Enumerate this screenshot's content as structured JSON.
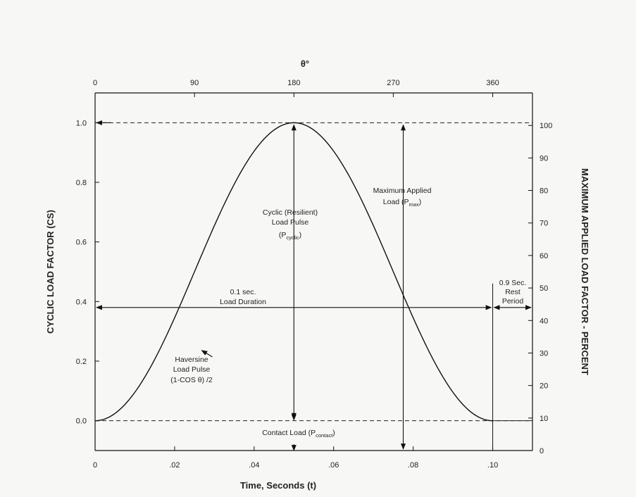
{
  "chart_data": {
    "type": "line",
    "title": "",
    "xlabel": "Time, Seconds (t)",
    "ylabel": "CYCLIC LOAD FACTOR (CS)",
    "y2label": "MAXIMUM APPLIED LOAD FACTOR - PERCENT",
    "x2label": "θ°",
    "xlim": [
      0,
      0.11
    ],
    "ylim": [
      -0.1,
      1.1
    ],
    "y2lim": [
      0,
      110
    ],
    "x_ticks": [
      0,
      0.02,
      0.04,
      0.06,
      0.08,
      0.1
    ],
    "x_tick_labels": [
      "0",
      ".02",
      ".04",
      ".06",
      ".08",
      ".10"
    ],
    "y_ticks": [
      0.0,
      0.2,
      0.4,
      0.6,
      0.8,
      1.0
    ],
    "y_tick_labels": [
      "0.0",
      "0.2",
      "0.4",
      "0.6",
      "0.8",
      "1.0"
    ],
    "y2_ticks": [
      0,
      10,
      20,
      30,
      40,
      50,
      60,
      70,
      80,
      90,
      100
    ],
    "y2_tick_labels": [
      "0",
      "10",
      "20",
      "30",
      "40",
      "50",
      "60",
      "70",
      "80",
      "90",
      "100"
    ],
    "x2_ticks": [
      0,
      90,
      180,
      270,
      360
    ],
    "x2_tick_labels": [
      "0",
      "90",
      "180",
      "270",
      "360"
    ],
    "series": [
      {
        "name": "Haversine Load Pulse (1-COS θ)/2",
        "x": [
          0,
          0.005,
          0.01,
          0.015,
          0.02,
          0.025,
          0.03,
          0.035,
          0.04,
          0.045,
          0.05,
          0.055,
          0.06,
          0.065,
          0.07,
          0.075,
          0.08,
          0.085,
          0.09,
          0.095,
          0.1
        ],
        "y": [
          0,
          0.024,
          0.095,
          0.206,
          0.345,
          0.5,
          0.655,
          0.794,
          0.905,
          0.976,
          1.0,
          0.976,
          0.905,
          0.794,
          0.655,
          0.5,
          0.345,
          0.206,
          0.095,
          0.024,
          0
        ]
      }
    ],
    "reference_lines": [
      {
        "axis": "y",
        "value": 1.0,
        "style": "dashed"
      },
      {
        "axis": "y",
        "value": 0.0,
        "style": "dashed"
      }
    ],
    "annotations": {
      "cyclic_pulse": [
        "Cyclic (Resilient)",
        "Load Pulse"
      ],
      "cyclic_symbol": "(P",
      "cyclic_sub": "cyclic",
      "max_applied": [
        "Maximum Applied",
        "Load (P"
      ],
      "max_sub": "max",
      "load_duration": [
        "0.1 sec.",
        "Load Duration"
      ],
      "rest_period": [
        "0.9 Sec.",
        "Rest",
        "Period"
      ],
      "haversine": [
        "Haversine",
        "Load Pulse",
        "(1-COS θ) /2"
      ],
      "contact_load": "Contact Load (P",
      "contact_sub": "contact",
      "close_paren": ")"
    }
  }
}
